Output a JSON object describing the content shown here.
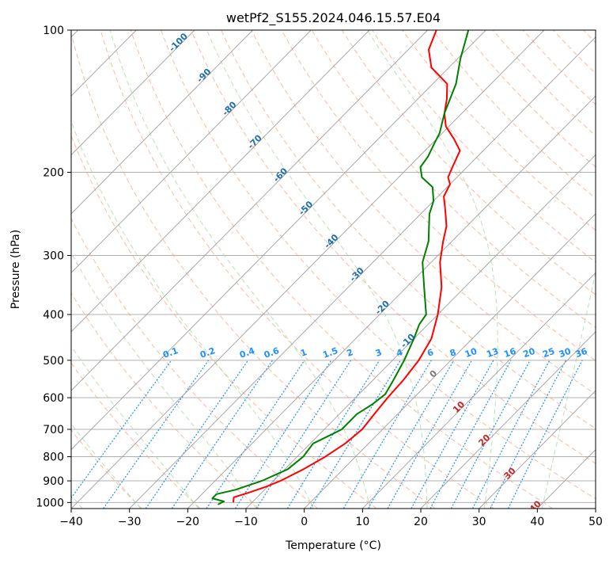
{
  "chart_data": {
    "type": "line",
    "title": "wetPf2_S155.2024.046.15.57.E04",
    "xlabel": "Temperature (°C)",
    "ylabel": "Pressure (hPa)",
    "xlim": [
      -40,
      50
    ],
    "ylim": [
      1030,
      100
    ],
    "y_scale": "log",
    "x_ticks": [
      -40,
      -30,
      -20,
      -10,
      0,
      10,
      20,
      30,
      40,
      50
    ],
    "y_ticks": [
      100,
      200,
      300,
      400,
      500,
      600,
      700,
      800,
      900,
      1000
    ],
    "grid": "on",
    "skew": "skew-T log-P diagram",
    "colors": {
      "temperature": "#ff0000",
      "dewpoint": "#008000",
      "dry_adiabat": "#f4a582",
      "moist_adiabat": "#a6dba0",
      "mixing_ratio": "#1e90ff",
      "isotherm": "#999999",
      "isotherm_label_neg": "#1f6fb0",
      "isotherm_label_pos": "#cc2222"
    },
    "isotherm_labels": [
      -100,
      -90,
      -80,
      -70,
      -60,
      -50,
      -40,
      -30,
      -20,
      -10,
      0,
      10,
      20,
      30,
      40
    ],
    "mixing_ratio_labels": [
      "0.1",
      "0.2",
      "0.4",
      "0.6",
      "1",
      "1.5",
      "2",
      "3",
      "4",
      "6",
      "8",
      "10",
      "13",
      "16",
      "20",
      "25",
      "30",
      "36"
    ],
    "series": [
      {
        "name": "Temperature",
        "points": [
          {
            "p": 1000,
            "t": -13.2
          },
          {
            "p": 975,
            "t": -14.0
          },
          {
            "p": 950,
            "t": -12.0
          },
          {
            "p": 925,
            "t": -10.2
          },
          {
            "p": 900,
            "t": -8.8
          },
          {
            "p": 850,
            "t": -6.8
          },
          {
            "p": 800,
            "t": -5.2
          },
          {
            "p": 750,
            "t": -4.0
          },
          {
            "p": 700,
            "t": -3.5
          },
          {
            "p": 650,
            "t": -4.0
          },
          {
            "p": 600,
            "t": -4.5
          },
          {
            "p": 550,
            "t": -4.8
          },
          {
            "p": 500,
            "t": -5.5
          },
          {
            "p": 450,
            "t": -7.0
          },
          {
            "p": 400,
            "t": -10.0
          },
          {
            "p": 350,
            "t": -14.0
          },
          {
            "p": 310,
            "t": -18.5
          },
          {
            "p": 280,
            "t": -21.5
          },
          {
            "p": 260,
            "t": -23.5
          },
          {
            "p": 240,
            "t": -26.5
          },
          {
            "p": 225,
            "t": -29.0
          },
          {
            "p": 212,
            "t": -30.0
          },
          {
            "p": 205,
            "t": -31.5
          },
          {
            "p": 195,
            "t": -32.5
          },
          {
            "p": 180,
            "t": -34.0
          },
          {
            "p": 170,
            "t": -37.0
          },
          {
            "p": 160,
            "t": -40.5
          },
          {
            "p": 150,
            "t": -43.0
          },
          {
            "p": 140,
            "t": -45.0
          },
          {
            "p": 130,
            "t": -47.5
          },
          {
            "p": 120,
            "t": -53.0
          },
          {
            "p": 110,
            "t": -56.5
          },
          {
            "p": 100,
            "t": -58.5
          }
        ]
      },
      {
        "name": "Dewpoint",
        "points": [
          {
            "p": 1010,
            "t": -15.5
          },
          {
            "p": 995,
            "t": -15.0
          },
          {
            "p": 980,
            "t": -17.5
          },
          {
            "p": 960,
            "t": -17.5
          },
          {
            "p": 940,
            "t": -15.0
          },
          {
            "p": 900,
            "t": -12.0
          },
          {
            "p": 850,
            "t": -9.5
          },
          {
            "p": 800,
            "t": -9.0
          },
          {
            "p": 750,
            "t": -9.5
          },
          {
            "p": 720,
            "t": -8.0
          },
          {
            "p": 700,
            "t": -7.0
          },
          {
            "p": 650,
            "t": -7.0
          },
          {
            "p": 620,
            "t": -6.0
          },
          {
            "p": 590,
            "t": -5.5
          },
          {
            "p": 550,
            "t": -6.5
          },
          {
            "p": 500,
            "t": -8.0
          },
          {
            "p": 450,
            "t": -10.0
          },
          {
            "p": 420,
            "t": -11.5
          },
          {
            "p": 400,
            "t": -12.0
          },
          {
            "p": 350,
            "t": -17.0
          },
          {
            "p": 310,
            "t": -21.5
          },
          {
            "p": 280,
            "t": -24.0
          },
          {
            "p": 260,
            "t": -26.5
          },
          {
            "p": 245,
            "t": -28.5
          },
          {
            "p": 230,
            "t": -30.0
          },
          {
            "p": 215,
            "t": -32.5
          },
          {
            "p": 205,
            "t": -36.0
          },
          {
            "p": 195,
            "t": -38.0
          },
          {
            "p": 185,
            "t": -38.5
          },
          {
            "p": 175,
            "t": -39.5
          },
          {
            "p": 165,
            "t": -40.5
          },
          {
            "p": 150,
            "t": -43.0
          },
          {
            "p": 130,
            "t": -46.0
          },
          {
            "p": 115,
            "t": -49.5
          },
          {
            "p": 100,
            "t": -53.0
          }
        ]
      }
    ]
  }
}
